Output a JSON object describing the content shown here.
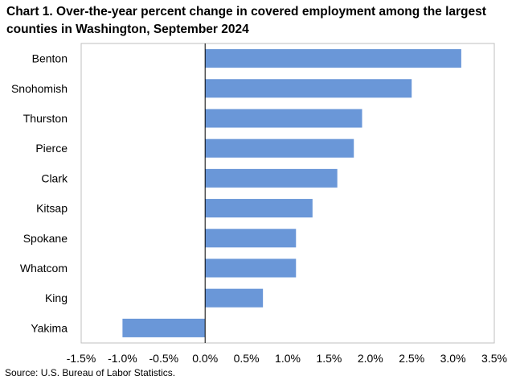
{
  "title": "Chart 1. Over-the-year percent change in covered employment among the largest counties in Washington, September 2024",
  "source": "Source: U.S. Bureau of Labor Statistics.",
  "chart_data": {
    "type": "bar",
    "orientation": "horizontal",
    "title": "Chart 1. Over-the-year percent change in covered employment among the largest counties in Washington, September 2024",
    "xlabel": "",
    "ylabel": "",
    "categories": [
      "Benton",
      "Snohomish",
      "Thurston",
      "Pierce",
      "Clark",
      "Kitsap",
      "Spokane",
      "Whatcom",
      "King",
      "Yakima"
    ],
    "values": [
      3.1,
      2.5,
      1.9,
      1.8,
      1.6,
      1.3,
      1.1,
      1.1,
      0.7,
      -1.0
    ],
    "xlim": [
      -1.5,
      3.5
    ],
    "xticks": [
      -1.5,
      -1.0,
      -0.5,
      0.0,
      0.5,
      1.0,
      1.5,
      2.0,
      2.5,
      3.0,
      3.5
    ],
    "xtick_labels": [
      "-1.5%",
      "-1.0%",
      "-0.5%",
      "0.0%",
      "0.5%",
      "1.0%",
      "1.5%",
      "2.0%",
      "2.5%",
      "3.0%",
      "3.5%"
    ],
    "grid": false,
    "legend": "none",
    "bar_color": "#6a97d8",
    "frame_color": "#bfbfbf",
    "axis_color": "#000000"
  }
}
